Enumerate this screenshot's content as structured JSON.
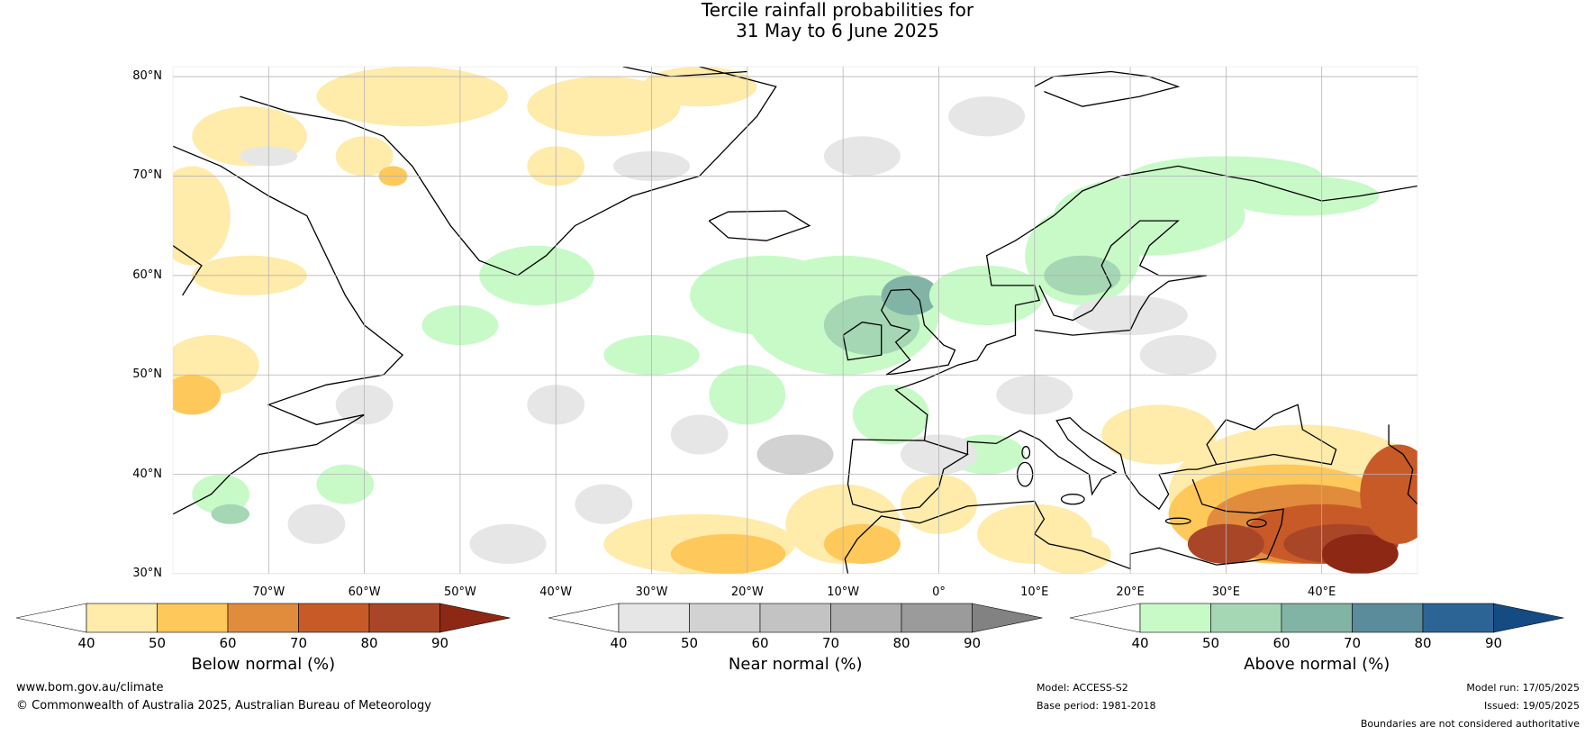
{
  "title": {
    "line1": "Tercile rainfall probabilities for",
    "line2": "31 May to 6 June 2025"
  },
  "map": {
    "lon_range": [
      -80,
      50
    ],
    "lat_range": [
      30,
      81
    ],
    "lat_ticks": [
      "80°N",
      "70°N",
      "60°N",
      "50°N",
      "40°N",
      "30°N"
    ],
    "lon_ticks": [
      "70°W",
      "60°W",
      "50°W",
      "40°W",
      "30°W",
      "20°W",
      "10°W",
      "0°",
      "10°E",
      "20°E",
      "30°E",
      "40°E"
    ],
    "colors": {
      "below": [
        "#ffebaa",
        "#ffc85a",
        "#e18c3c",
        "#c85a28",
        "#aa4628",
        "#8c2814"
      ],
      "near": [
        "#e6e6e6",
        "#d2d2d2",
        "#c3c3c3",
        "#afafaf",
        "#9b9b9b",
        "#828282"
      ],
      "above": [
        "#c8fac8",
        "#a5d7b4",
        "#82b4a5",
        "#5a8c9b",
        "#2d6496",
        "#144b82"
      ]
    }
  },
  "colorbars": [
    {
      "label": "Below normal (%)",
      "ticks": [
        "40",
        "50",
        "60",
        "70",
        "80",
        "90"
      ]
    },
    {
      "label": "Near normal (%)",
      "ticks": [
        "40",
        "50",
        "60",
        "70",
        "80",
        "90"
      ]
    },
    {
      "label": "Above normal (%)",
      "ticks": [
        "40",
        "50",
        "60",
        "70",
        "80",
        "90"
      ]
    }
  ],
  "footer": {
    "url": "www.bom.gov.au/climate",
    "copyright": "© Commonwealth of Australia 2025, Australian Bureau of Meteorology",
    "model": "Model: ACCESS-S2",
    "base_period": "Base period: 1981-2018",
    "model_run": "Model run: 17/05/2025",
    "issued": "Issued: 19/05/2025",
    "disclaimer": "Boundaries are not considered authoritative"
  }
}
